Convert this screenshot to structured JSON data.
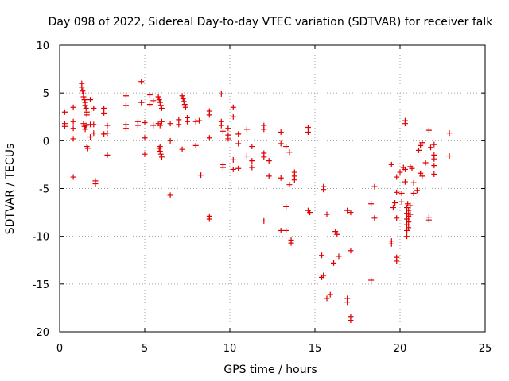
{
  "chart_data": {
    "type": "scatter",
    "title": "Day 098 of 2022, Sidereal Day-to-day VTEC variation (SDTVAR) for receiver falk",
    "xlabel": "GPS time / hours",
    "ylabel": "SDTVAR / TECUs",
    "xlim": [
      0,
      25
    ],
    "ylim": [
      -20,
      10
    ],
    "xticks": [
      "0",
      "5",
      "10",
      "15",
      "20",
      "25"
    ],
    "yticks": [
      "-20",
      "-15",
      "-10",
      "-5",
      "0",
      "5",
      "10"
    ],
    "grid": true,
    "marker": "+",
    "color": "#e00000",
    "series": [
      {
        "name": "SDTVAR",
        "points": [
          [
            0.3,
            3.0
          ],
          [
            0.3,
            1.8
          ],
          [
            0.3,
            1.5
          ],
          [
            0.8,
            3.5
          ],
          [
            0.8,
            2.0
          ],
          [
            0.8,
            1.3
          ],
          [
            0.8,
            0.2
          ],
          [
            0.8,
            -3.8
          ],
          [
            1.3,
            6.0
          ],
          [
            1.3,
            5.6
          ],
          [
            1.35,
            5.2
          ],
          [
            1.4,
            4.9
          ],
          [
            1.4,
            4.6
          ],
          [
            1.45,
            4.3
          ],
          [
            1.5,
            4.0
          ],
          [
            1.5,
            3.7
          ],
          [
            1.55,
            3.4
          ],
          [
            1.6,
            3.0
          ],
          [
            1.6,
            2.7
          ],
          [
            1.4,
            1.8
          ],
          [
            1.45,
            1.5
          ],
          [
            1.5,
            1.2
          ],
          [
            1.55,
            1.6
          ],
          [
            1.6,
            -0.6
          ],
          [
            1.65,
            -0.8
          ],
          [
            1.8,
            4.3
          ],
          [
            1.8,
            1.7
          ],
          [
            1.8,
            0.4
          ],
          [
            2.0,
            3.4
          ],
          [
            2.0,
            1.7
          ],
          [
            2.0,
            0.8
          ],
          [
            2.1,
            -4.2
          ],
          [
            2.1,
            -4.5
          ],
          [
            2.6,
            3.4
          ],
          [
            2.6,
            2.9
          ],
          [
            2.6,
            0.7
          ],
          [
            2.8,
            1.6
          ],
          [
            2.8,
            0.8
          ],
          [
            2.8,
            -1.5
          ],
          [
            3.9,
            4.7
          ],
          [
            3.9,
            3.7
          ],
          [
            3.9,
            1.7
          ],
          [
            3.9,
            1.3
          ],
          [
            4.6,
            2.0
          ],
          [
            4.6,
            1.6
          ],
          [
            4.8,
            6.2
          ],
          [
            4.8,
            4.0
          ],
          [
            5.0,
            1.9
          ],
          [
            5.0,
            0.3
          ],
          [
            5.0,
            -1.4
          ],
          [
            5.3,
            4.8
          ],
          [
            5.3,
            3.8
          ],
          [
            5.5,
            4.2
          ],
          [
            5.5,
            1.6
          ],
          [
            5.8,
            4.6
          ],
          [
            5.85,
            4.3
          ],
          [
            5.9,
            4.0
          ],
          [
            5.95,
            3.7
          ],
          [
            6.0,
            3.4
          ],
          [
            5.8,
            1.8
          ],
          [
            5.9,
            1.6
          ],
          [
            6.0,
            2.0
          ],
          [
            5.85,
            -0.8
          ],
          [
            5.9,
            -1.1
          ],
          [
            5.95,
            -1.4
          ],
          [
            6.0,
            -1.7
          ],
          [
            5.9,
            -0.6
          ],
          [
            6.5,
            1.8
          ],
          [
            6.5,
            0.0
          ],
          [
            6.5,
            -5.7
          ],
          [
            7.0,
            2.2
          ],
          [
            7.0,
            1.7
          ],
          [
            7.2,
            4.7
          ],
          [
            7.25,
            4.4
          ],
          [
            7.3,
            4.1
          ],
          [
            7.35,
            3.8
          ],
          [
            7.4,
            3.5
          ],
          [
            7.5,
            2.4
          ],
          [
            7.5,
            2.0
          ],
          [
            7.2,
            -0.9
          ],
          [
            8.0,
            2.0
          ],
          [
            8.0,
            -0.5
          ],
          [
            8.2,
            2.1
          ],
          [
            8.3,
            -3.6
          ],
          [
            8.8,
            3.1
          ],
          [
            8.8,
            2.7
          ],
          [
            8.8,
            0.3
          ],
          [
            8.8,
            -7.9
          ],
          [
            8.8,
            -8.2
          ],
          [
            9.5,
            4.9
          ],
          [
            9.5,
            2.0
          ],
          [
            9.5,
            1.6
          ],
          [
            9.6,
            1.0
          ],
          [
            9.6,
            -2.5
          ],
          [
            9.6,
            -2.8
          ],
          [
            9.9,
            1.3
          ],
          [
            9.9,
            0.6
          ],
          [
            9.9,
            0.2
          ],
          [
            10.2,
            3.5
          ],
          [
            10.2,
            2.5
          ],
          [
            10.2,
            -2.0
          ],
          [
            10.2,
            -3.0
          ],
          [
            10.5,
            0.7
          ],
          [
            10.5,
            -0.3
          ],
          [
            10.5,
            -2.9
          ],
          [
            11.0,
            1.2
          ],
          [
            11.0,
            -1.6
          ],
          [
            11.3,
            -0.6
          ],
          [
            11.3,
            -2.1
          ],
          [
            11.3,
            -2.8
          ],
          [
            12.0,
            1.6
          ],
          [
            12.0,
            1.2
          ],
          [
            12.0,
            -1.3
          ],
          [
            12.0,
            -1.7
          ],
          [
            12.0,
            -8.4
          ],
          [
            12.3,
            -2.1
          ],
          [
            12.3,
            -3.7
          ],
          [
            13.0,
            0.9
          ],
          [
            13.0,
            -0.3
          ],
          [
            13.0,
            -3.9
          ],
          [
            13.0,
            -9.4
          ],
          [
            13.3,
            -0.6
          ],
          [
            13.3,
            -6.9
          ],
          [
            13.3,
            -9.4
          ],
          [
            13.5,
            -1.2
          ],
          [
            13.5,
            -4.6
          ],
          [
            13.6,
            -10.4
          ],
          [
            13.6,
            -10.7
          ],
          [
            13.8,
            -3.3
          ],
          [
            13.8,
            -3.7
          ],
          [
            13.8,
            -4.1
          ],
          [
            14.6,
            1.4
          ],
          [
            14.6,
            0.9
          ],
          [
            14.6,
            -7.3
          ],
          [
            14.7,
            -7.5
          ],
          [
            15.4,
            -12.0
          ],
          [
            15.4,
            -14.3
          ],
          [
            15.5,
            -14.1
          ],
          [
            15.5,
            -4.8
          ],
          [
            15.5,
            -5.1
          ],
          [
            15.7,
            -7.7
          ],
          [
            15.7,
            -16.5
          ],
          [
            15.9,
            -16.1
          ],
          [
            16.1,
            -12.8
          ],
          [
            16.2,
            -9.5
          ],
          [
            16.3,
            -9.8
          ],
          [
            16.4,
            -12.1
          ],
          [
            16.9,
            -7.3
          ],
          [
            16.9,
            -16.5
          ],
          [
            16.9,
            -16.9
          ],
          [
            17.1,
            -7.5
          ],
          [
            17.1,
            -11.5
          ],
          [
            17.1,
            -18.4
          ],
          [
            17.1,
            -18.8
          ],
          [
            18.3,
            -6.6
          ],
          [
            18.3,
            -14.6
          ],
          [
            18.5,
            -4.8
          ],
          [
            18.5,
            -8.1
          ],
          [
            19.5,
            -2.5
          ],
          [
            19.5,
            -10.5
          ],
          [
            19.5,
            -10.8
          ],
          [
            19.6,
            -7.0
          ],
          [
            19.7,
            -6.5
          ],
          [
            19.8,
            -3.8
          ],
          [
            19.8,
            -5.4
          ],
          [
            19.8,
            -8.1
          ],
          [
            19.8,
            -12.2
          ],
          [
            19.8,
            -12.6
          ],
          [
            20.0,
            -3.3
          ],
          [
            20.1,
            -5.5
          ],
          [
            20.1,
            -6.4
          ],
          [
            20.2,
            -2.8
          ],
          [
            20.3,
            2.1
          ],
          [
            20.3,
            1.8
          ],
          [
            20.3,
            -3.0
          ],
          [
            20.3,
            -4.3
          ],
          [
            20.4,
            -7.0
          ],
          [
            20.4,
            -7.6
          ],
          [
            20.4,
            -8.2
          ],
          [
            20.4,
            -8.8
          ],
          [
            20.4,
            -9.4
          ],
          [
            20.4,
            -10.0
          ],
          [
            20.45,
            -6.6
          ],
          [
            20.5,
            -7.3
          ],
          [
            20.5,
            -7.9
          ],
          [
            20.5,
            -8.5
          ],
          [
            20.5,
            -9.1
          ],
          [
            20.6,
            -6.8
          ],
          [
            20.6,
            -7.7
          ],
          [
            20.6,
            -2.7
          ],
          [
            20.7,
            -2.9
          ],
          [
            20.8,
            -4.4
          ],
          [
            20.8,
            -5.5
          ],
          [
            21.0,
            -5.2
          ],
          [
            21.1,
            -1.0
          ],
          [
            21.2,
            -0.5
          ],
          [
            21.2,
            -3.4
          ],
          [
            21.3,
            -0.2
          ],
          [
            21.3,
            -3.7
          ],
          [
            21.5,
            -2.3
          ],
          [
            21.7,
            -8.0
          ],
          [
            21.7,
            -8.3
          ],
          [
            21.7,
            1.1
          ],
          [
            21.8,
            -0.7
          ],
          [
            22.0,
            -0.4
          ],
          [
            22.0,
            -1.5
          ],
          [
            22.0,
            -1.9
          ],
          [
            22.0,
            -2.6
          ],
          [
            22.0,
            -3.5
          ],
          [
            22.9,
            0.8
          ],
          [
            22.9,
            -1.6
          ]
        ]
      }
    ]
  }
}
